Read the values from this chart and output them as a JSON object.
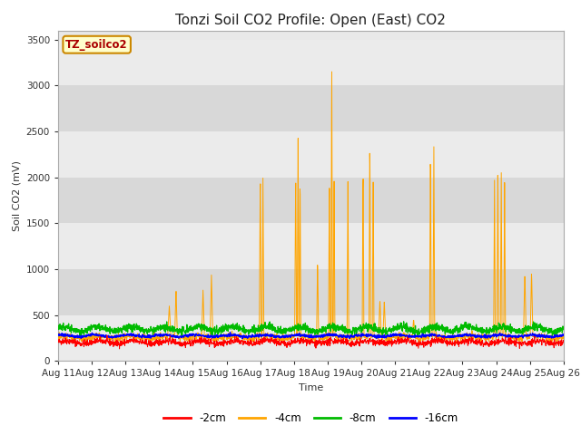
{
  "title": "Tonzi Soil CO2 Profile: Open (East) CO2",
  "ylabel": "Soil CO2 (mV)",
  "xlabel": "Time",
  "legend_label": "TZ_soilco2",
  "series_labels": [
    "-2cm",
    "-4cm",
    "-8cm",
    "-16cm"
  ],
  "series_colors": [
    "#ff0000",
    "#ffa500",
    "#00bb00",
    "#0000ff"
  ],
  "ylim": [
    0,
    3600
  ],
  "yticks": [
    0,
    500,
    1000,
    1500,
    2000,
    2500,
    3000,
    3500
  ],
  "x_start_day": 11,
  "x_end_day": 26,
  "xtick_days": [
    11,
    12,
    13,
    14,
    15,
    16,
    17,
    18,
    19,
    20,
    21,
    22,
    23,
    24,
    25,
    26
  ],
  "fig_bg_color": "#ffffff",
  "plot_bg_color": "#e8e8e8",
  "stripe_color_dark": "#d8d8d8",
  "stripe_color_light": "#ebebeb",
  "title_fontsize": 11,
  "axis_fontsize": 8,
  "tick_fontsize": 7.5,
  "legend_fontsize": 8.5
}
